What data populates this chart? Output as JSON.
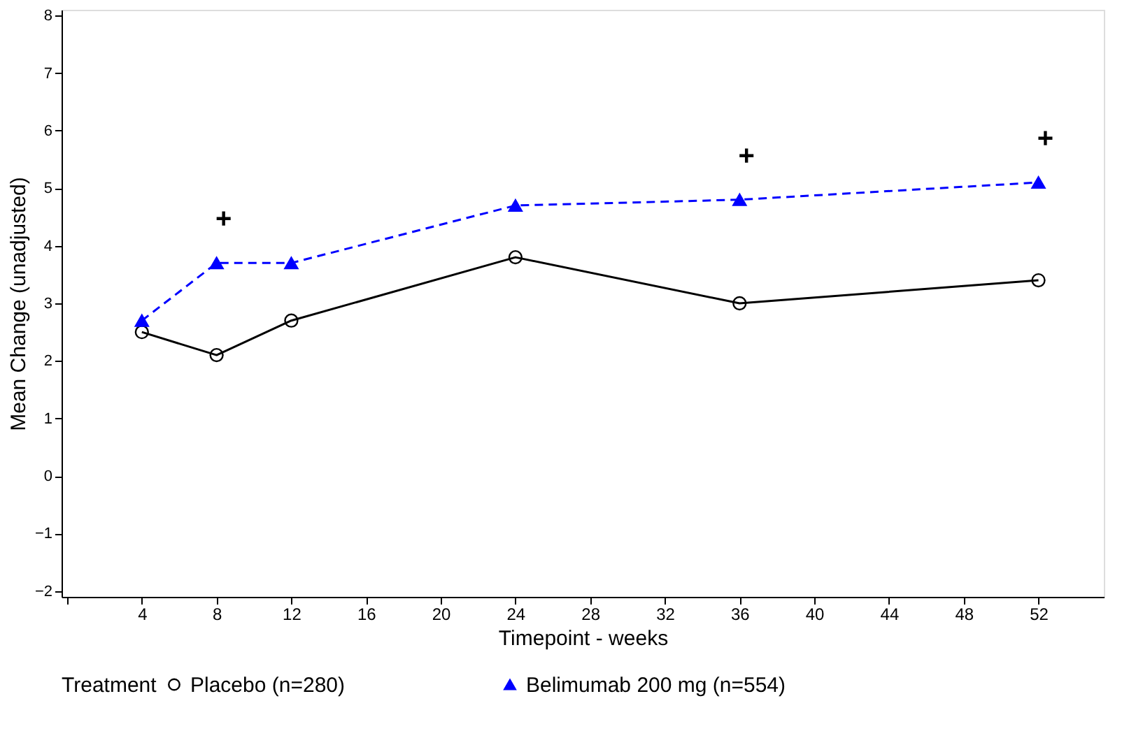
{
  "chart_data": {
    "type": "line",
    "xlabel": "Timepoint - weeks",
    "ylabel": "Mean Change (unadjusted)",
    "legend_title": "Treatment",
    "x": [
      4,
      8,
      12,
      24,
      36,
      52
    ],
    "series": [
      {
        "name": "Placebo (n=280)",
        "color": "#000000",
        "marker": "circle",
        "line_style": "solid",
        "values": [
          2.5,
          2.1,
          2.7,
          3.8,
          3.0,
          3.4
        ]
      },
      {
        "name": "Belimumab 200 mg (n=554)",
        "color": "#0000ff",
        "marker": "triangle",
        "line_style": "dashed",
        "values": [
          2.7,
          3.7,
          3.7,
          4.7,
          4.8,
          5.1
        ]
      }
    ],
    "annotations": [
      {
        "text": "+",
        "x": 8,
        "y": 3.7
      },
      {
        "text": "+",
        "x": 36,
        "y": 4.8
      },
      {
        "text": "+",
        "x": 52,
        "y": 5.1
      }
    ],
    "xlim": [
      -0.3,
      55.5
    ],
    "xticks": [
      {
        "value": 0,
        "label": null
      },
      4,
      8,
      12,
      16,
      20,
      24,
      28,
      32,
      36,
      40,
      44,
      48,
      52
    ],
    "ylim": [
      -2.1,
      8.1
    ],
    "yticks": [
      -2,
      -1,
      0,
      1,
      2,
      3,
      4,
      5,
      6,
      7,
      8
    ],
    "grid": false,
    "legend": "bottom"
  }
}
